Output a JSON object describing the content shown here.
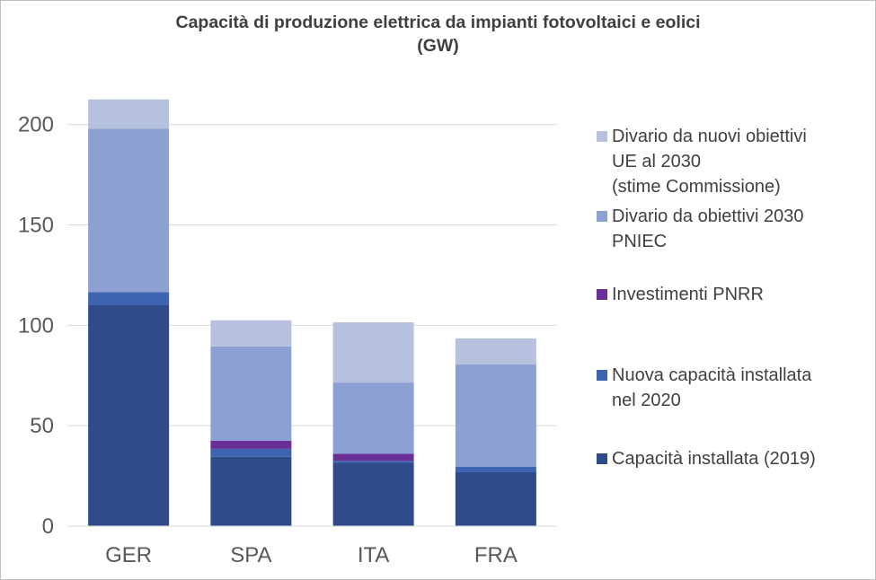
{
  "chart_data": {
    "type": "bar",
    "stacked": true,
    "title_lines": [
      "Capacità di produzione elettrica da impianti fotovoltaici e eolici",
      "(GW)"
    ],
    "categories": [
      "GER",
      "SPA",
      "ITA",
      "FRA"
    ],
    "ylim": [
      0,
      220
    ],
    "yticks": [
      0,
      50,
      100,
      150,
      200
    ],
    "grid": true,
    "legend_position": "right",
    "series": [
      {
        "name": "Capacità installata (2019)",
        "color": "#2f4b8a",
        "values": [
          110,
          34.5,
          31.5,
          27
        ]
      },
      {
        "name": "Nuova capacità installata\nnel 2020",
        "color": "#3c64b1",
        "values": [
          6.5,
          4,
          1,
          2.5
        ]
      },
      {
        "name": "Investimenti PNRR",
        "color": "#6a2f96",
        "values": [
          0,
          4,
          3.5,
          0
        ]
      },
      {
        "name": "Divario da obiettivi 2030\nPNIEC",
        "color": "#8da0d3",
        "values": [
          81.5,
          47,
          35.5,
          51
        ]
      },
      {
        "name": "Divario da nuovi obiettivi\nUE al 2030\n(stime Commissione)",
        "color": "#b6c1e0",
        "values": [
          14.5,
          13,
          30,
          13
        ]
      }
    ]
  }
}
